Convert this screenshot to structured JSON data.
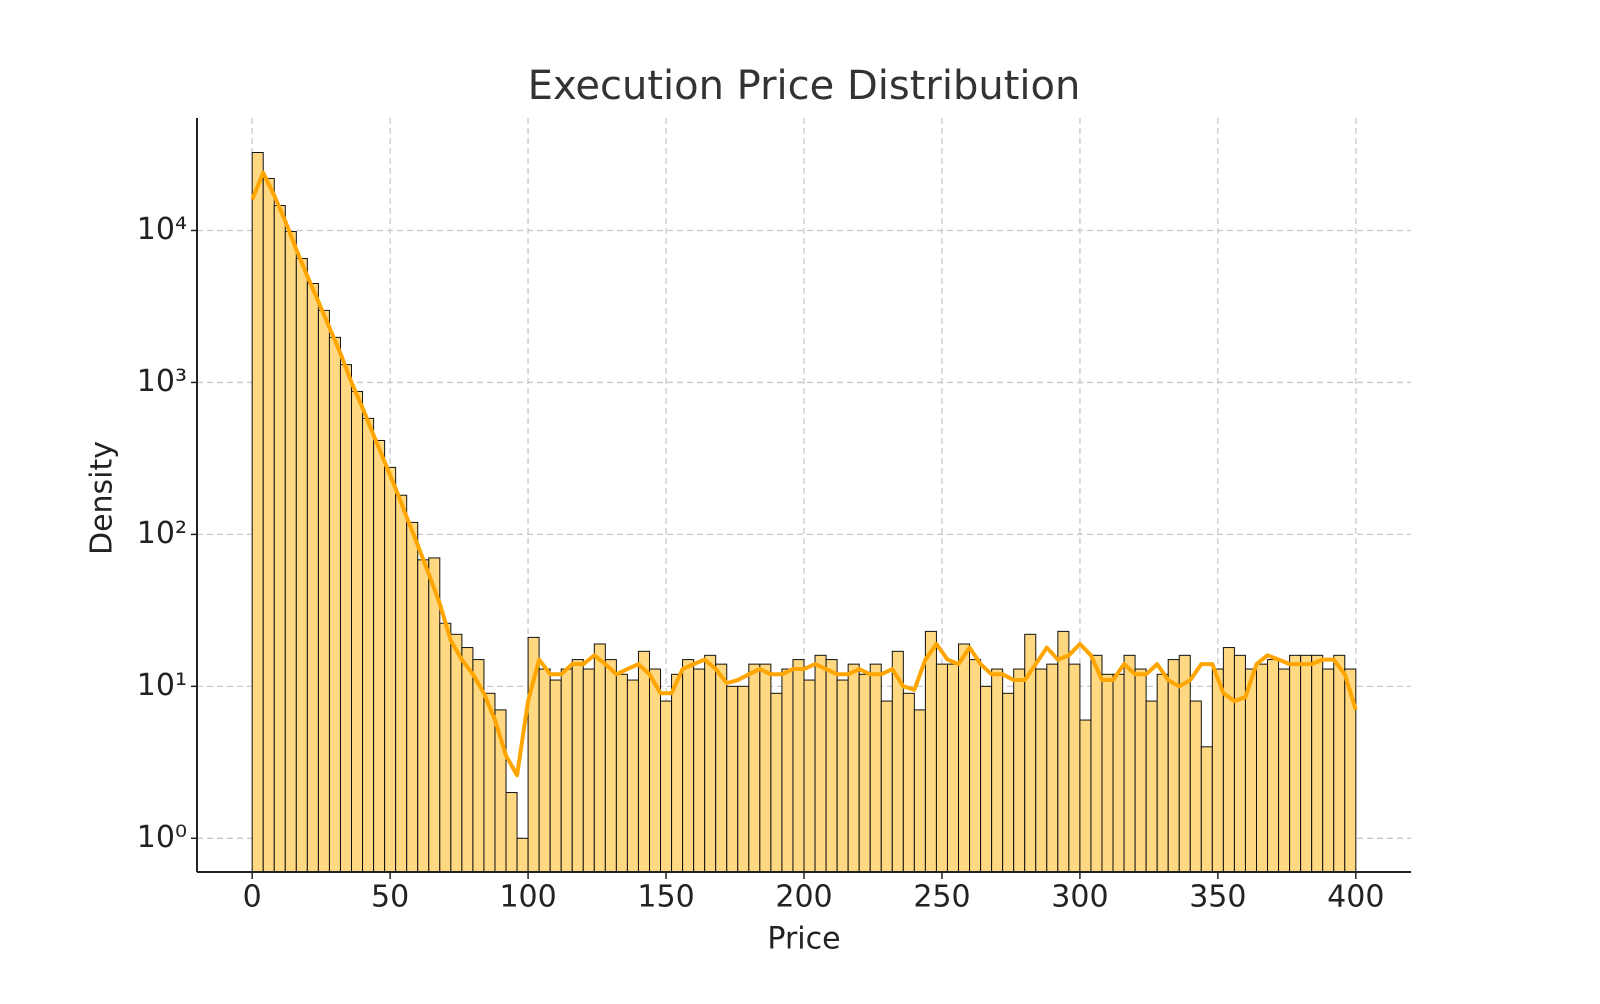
{
  "chart_data": {
    "type": "histogram",
    "title": "Execution Price Distribution",
    "x_label": "Price",
    "y_label": "Density",
    "yscale": "log",
    "grid": true,
    "color": "#ffd882",
    "edgecolor": "#111111",
    "bins": [
      0,
      4,
      8,
      12,
      16,
      20,
      24,
      28,
      32,
      36,
      40,
      44,
      48,
      52,
      56,
      60,
      64,
      68,
      72,
      76,
      80,
      84,
      88,
      92,
      96,
      100,
      104,
      108,
      112,
      116,
      120,
      124,
      128,
      132,
      136,
      140,
      144,
      148,
      152,
      156,
      160,
      164,
      168,
      172,
      176,
      180,
      184,
      188,
      192,
      196,
      200,
      204,
      208,
      212,
      216,
      220,
      224,
      228,
      232,
      236,
      240,
      244,
      248,
      252,
      256,
      260,
      264,
      268,
      272,
      276,
      280,
      284,
      288,
      292,
      296,
      300,
      304,
      308,
      312,
      316,
      320,
      324,
      328,
      332,
      336,
      340,
      344,
      348,
      352,
      356,
      360,
      364,
      368,
      372,
      376,
      380,
      384,
      388,
      392,
      396,
      400
    ],
    "counts": [
      32600,
      22000,
      14600,
      9850,
      6540,
      4480,
      2980,
      1980,
      1310,
      873,
      580,
      415,
      276,
      181,
      120,
      68,
      70,
      26,
      22,
      18,
      15,
      9,
      7,
      2,
      1,
      21,
      13,
      11,
      13,
      15,
      13,
      19,
      15,
      12,
      11,
      17,
      13,
      8,
      12,
      15,
      13,
      16,
      14,
      10,
      10,
      14,
      14,
      9,
      13,
      15,
      11,
      16,
      15,
      11,
      14,
      12,
      14,
      8,
      17,
      9,
      7,
      23,
      14,
      14,
      19,
      15,
      10,
      13,
      9,
      13,
      22,
      13,
      14,
      23,
      14,
      6,
      16,
      12,
      12,
      16,
      13,
      8,
      12,
      15,
      16,
      8,
      4,
      13,
      18,
      16,
      13,
      14,
      15,
      13,
      16,
      16,
      16,
      13,
      16,
      13
    ],
    "kde": {
      "color": "#ffa500",
      "x": [
        0,
        4,
        8,
        12,
        16,
        20,
        24,
        28,
        32,
        36,
        40,
        44,
        48,
        52,
        56,
        60,
        64,
        68,
        72,
        76,
        80,
        84,
        88,
        92,
        96,
        100,
        104,
        108,
        112,
        116,
        120,
        124,
        128,
        132,
        136,
        140,
        144,
        148,
        152,
        156,
        160,
        164,
        168,
        172,
        176,
        180,
        184,
        188,
        192,
        196,
        200,
        204,
        208,
        212,
        216,
        220,
        224,
        228,
        232,
        236,
        240,
        244,
        248,
        252,
        256,
        260,
        264,
        268,
        272,
        276,
        280,
        284,
        288,
        292,
        296,
        300,
        304,
        308,
        312,
        316,
        320,
        324,
        328,
        332,
        336,
        340,
        344,
        348,
        352,
        356,
        360,
        364,
        368,
        372,
        376,
        380,
        384,
        388,
        392,
        396,
        400
      ],
      "values": [
        16000,
        24000,
        17000,
        11500,
        7500,
        5000,
        3400,
        2300,
        1550,
        1000,
        680,
        450,
        300,
        200,
        130,
        85,
        55,
        35,
        20,
        15,
        12,
        9,
        6,
        3.5,
        2.6,
        8,
        15,
        12,
        12,
        14,
        14,
        16,
        14,
        12,
        13,
        14,
        12,
        9,
        9,
        13,
        14,
        15,
        13,
        10.5,
        11,
        12,
        13,
        12,
        12,
        13,
        13,
        14,
        13,
        12,
        12,
        13,
        12,
        12,
        13,
        10,
        9.5,
        15,
        19,
        15,
        14,
        18,
        14,
        12,
        12,
        11,
        11,
        14,
        18,
        15,
        16,
        19,
        16,
        11,
        11,
        14,
        12,
        12,
        14,
        11,
        10,
        11,
        14,
        14,
        9,
        8,
        8.5,
        14,
        16,
        15,
        14,
        14,
        14,
        15,
        15,
        12,
        7
      ]
    },
    "xlim": [
      -20,
      420
    ],
    "xticks": [
      0,
      50,
      100,
      150,
      200,
      250,
      300,
      350,
      400
    ],
    "ylim": [
      0.6,
      55000
    ],
    "yticks": [
      {
        "value": 1,
        "label": "10⁰"
      },
      {
        "value": 10,
        "label": "10¹"
      },
      {
        "value": 100,
        "label": "10²"
      },
      {
        "value": 1000,
        "label": "10³"
      },
      {
        "value": 10000,
        "label": "10⁴"
      }
    ]
  }
}
